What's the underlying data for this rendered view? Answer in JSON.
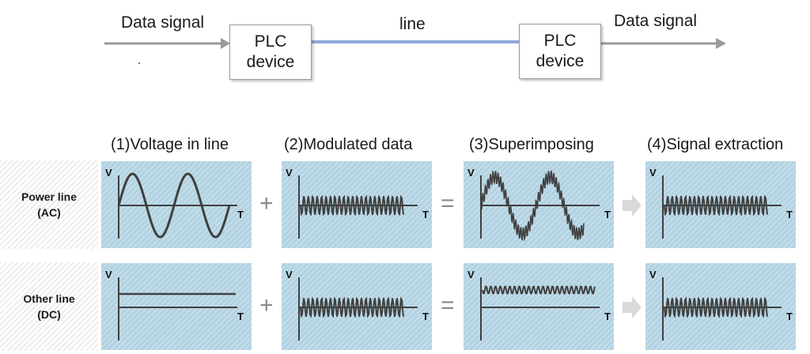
{
  "top_diagram": {
    "input_label": "Data signal",
    "device_left": {
      "line1": "PLC",
      "line2": "device"
    },
    "line_label": "line",
    "device_right": {
      "line1": "PLC",
      "line2": "device"
    },
    "output_label": "Data signal",
    "line_color": "#8fa9dc",
    "arrow_color": "#9a9a9a"
  },
  "columns": [
    {
      "label": "(1)Voltage in line"
    },
    {
      "label": "(2)Modulated data"
    },
    {
      "label": "(3)Superimposing"
    },
    {
      "label": "(4)Signal extraction"
    }
  ],
  "rows": [
    {
      "label_line1": "Power line",
      "label_line2": "(AC)"
    },
    {
      "label_line1": "Other line",
      "label_line2": "(DC)"
    }
  ],
  "axis": {
    "y": "V",
    "x": "T"
  },
  "operators": {
    "plus": "+",
    "equals": "="
  },
  "colors": {
    "panel": "#bcd8e6",
    "wave": "#404040"
  }
}
